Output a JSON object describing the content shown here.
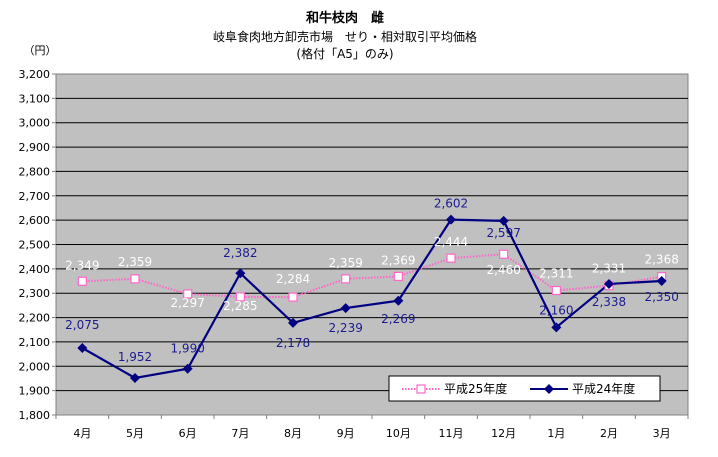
{
  "chart_data": {
    "type": "line",
    "title": "和牛枝肉　雌",
    "subtitle_line1": "岐阜食肉地方卸売市場　せり・相対取引平均価格",
    "subtitle_line2": "(格付「A5」のみ)",
    "y_unit": "（円）",
    "categories": [
      "4月",
      "5月",
      "6月",
      "7月",
      "8月",
      "9月",
      "10月",
      "11月",
      "12月",
      "1月",
      "2月",
      "3月"
    ],
    "ylim": [
      1800,
      3200
    ],
    "ytick_step": 100,
    "ytick_labels": [
      "1,800",
      "1,900",
      "2,000",
      "2,100",
      "2,200",
      "2,300",
      "2,400",
      "2,500",
      "2,600",
      "2,700",
      "2,800",
      "2,900",
      "3,000",
      "3,100",
      "3,200"
    ],
    "grid": true,
    "legend_position": "bottom-right",
    "series": [
      {
        "name": "平成25年度",
        "color": "#ff66cc",
        "marker": "open-square",
        "line_style": "dotted",
        "values": [
          2349,
          2359,
          2297,
          2285,
          2284,
          2359,
          2369,
          2444,
          2460,
          2311,
          2331,
          2368
        ],
        "labels": [
          "2,349",
          "2,359",
          "2,297",
          "2,285",
          "2,284",
          "2,359",
          "2,369",
          "2,444",
          "2,460",
          "2,311",
          "2,331",
          "2,368"
        ]
      },
      {
        "name": "平成24年度",
        "color": "#000080",
        "marker": "diamond",
        "line_style": "solid",
        "values": [
          2075,
          1952,
          1990,
          2382,
          2178,
          2239,
          2269,
          2602,
          2597,
          2160,
          2338,
          2350
        ],
        "labels": [
          "2,075",
          "1,952",
          "1,990",
          "2,382",
          "2,178",
          "2,239",
          "2,269",
          "2,602",
          "2,597",
          "2,160",
          "2,338",
          "2,350"
        ]
      }
    ]
  }
}
